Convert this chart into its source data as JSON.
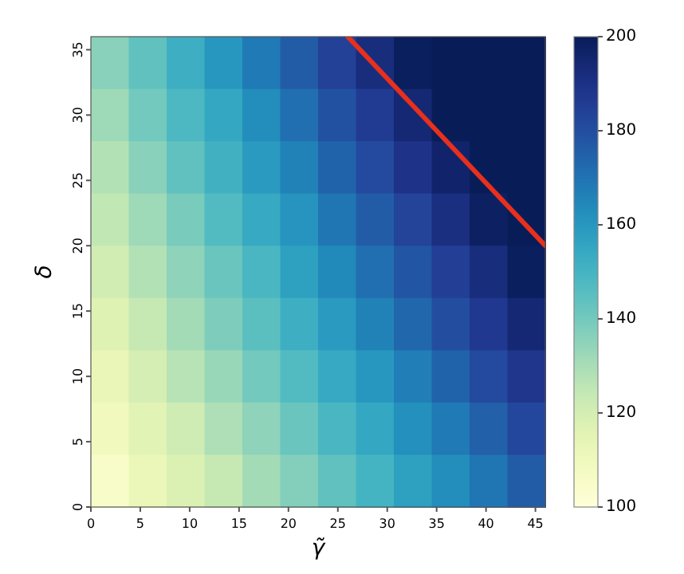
{
  "chart_data": {
    "type": "heatmap",
    "xlabel": "γ̃",
    "ylabel": "δ",
    "xlim": [
      0,
      46
    ],
    "ylim": [
      0,
      36
    ],
    "xticks": [
      0,
      5,
      10,
      15,
      20,
      25,
      30,
      35,
      40,
      45
    ],
    "yticks": [
      0,
      5,
      10,
      15,
      20,
      25,
      30,
      35
    ],
    "clim": [
      100,
      200
    ],
    "cticks": [
      100,
      120,
      140,
      160,
      180,
      200
    ],
    "cells": [
      [
        136,
        144,
        152,
        160,
        168,
        176,
        184,
        192,
        199,
        200,
        200,
        200
      ],
      [
        132,
        140,
        148,
        155,
        163,
        171,
        179,
        186,
        194,
        200,
        200,
        200
      ],
      [
        128,
        136,
        144,
        151,
        159,
        166,
        174,
        181,
        189,
        196,
        200,
        200
      ],
      [
        125,
        132,
        139,
        147,
        154,
        161,
        169,
        176,
        183,
        191,
        198,
        200
      ],
      [
        121,
        128,
        135,
        142,
        149,
        157,
        164,
        171,
        178,
        185,
        192,
        199
      ],
      [
        117,
        124,
        131,
        138,
        145,
        152,
        159,
        166,
        173,
        180,
        187,
        194
      ],
      [
        113,
        120,
        127,
        133,
        140,
        147,
        154,
        160,
        167,
        174,
        181,
        188
      ],
      [
        109,
        116,
        122,
        129,
        135,
        142,
        149,
        155,
        162,
        168,
        175,
        182
      ],
      [
        105,
        112,
        118,
        124,
        131,
        137,
        144,
        150,
        157,
        163,
        169,
        176
      ]
    ],
    "series": [
      {
        "type": "line",
        "color": "#e8301c",
        "x": [
          26,
          46
        ],
        "values": [
          36,
          20
        ]
      }
    ]
  }
}
